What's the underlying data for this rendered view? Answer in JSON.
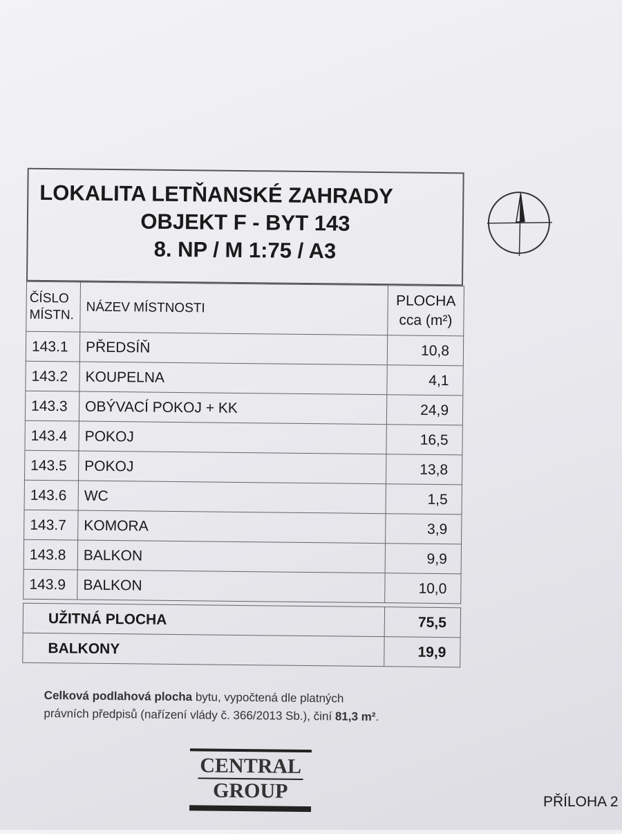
{
  "title": {
    "line1": "LOKALITA LETŇANSKÉ ZAHRADY",
    "line2": "OBJEKT F - BYT 143",
    "line3": "8. NP / M 1:75 / A3"
  },
  "compass_icon": "north-arrow-icon",
  "table": {
    "headers": {
      "number_l1": "ČÍSLO",
      "number_l2": "MÍSTN.",
      "name": "NÁZEV MÍSTNOSTI",
      "area_l1": "PLOCHA",
      "area_l2": "cca (m²)"
    },
    "rows": [
      {
        "number": "143.1",
        "name": "PŘEDSÍŇ",
        "area": "10,8"
      },
      {
        "number": "143.2",
        "name": "KOUPELNA",
        "area": "4,1"
      },
      {
        "number": "143.3",
        "name": "OBÝVACÍ POKOJ + KK",
        "area": "24,9"
      },
      {
        "number": "143.4",
        "name": "POKOJ",
        "area": "16,5"
      },
      {
        "number": "143.5",
        "name": "POKOJ",
        "area": "13,8"
      },
      {
        "number": "143.6",
        "name": "WC",
        "area": "1,5"
      },
      {
        "number": "143.7",
        "name": "KOMORA",
        "area": "3,9"
      },
      {
        "number": "143.8",
        "name": "BALKON",
        "area": "9,9"
      },
      {
        "number": "143.9",
        "name": "BALKON",
        "area": "10,0"
      }
    ],
    "totals": [
      {
        "label": "UŽITNÁ PLOCHA",
        "value": "75,5"
      },
      {
        "label": "BALKONY",
        "value": "19,9"
      }
    ]
  },
  "footnote": {
    "bold1": "Celková podlahová plocha",
    "text1": " bytu, vypočtená dle platných",
    "text2": "právních předpisů (nařízení vlády č. 366/2013 Sb.), činí ",
    "bold2": "81,3 m²",
    "end": "."
  },
  "logo": {
    "line1": "CENTRAL",
    "line2": "GROUP"
  },
  "attachment": "PŘÍLOHA 2"
}
